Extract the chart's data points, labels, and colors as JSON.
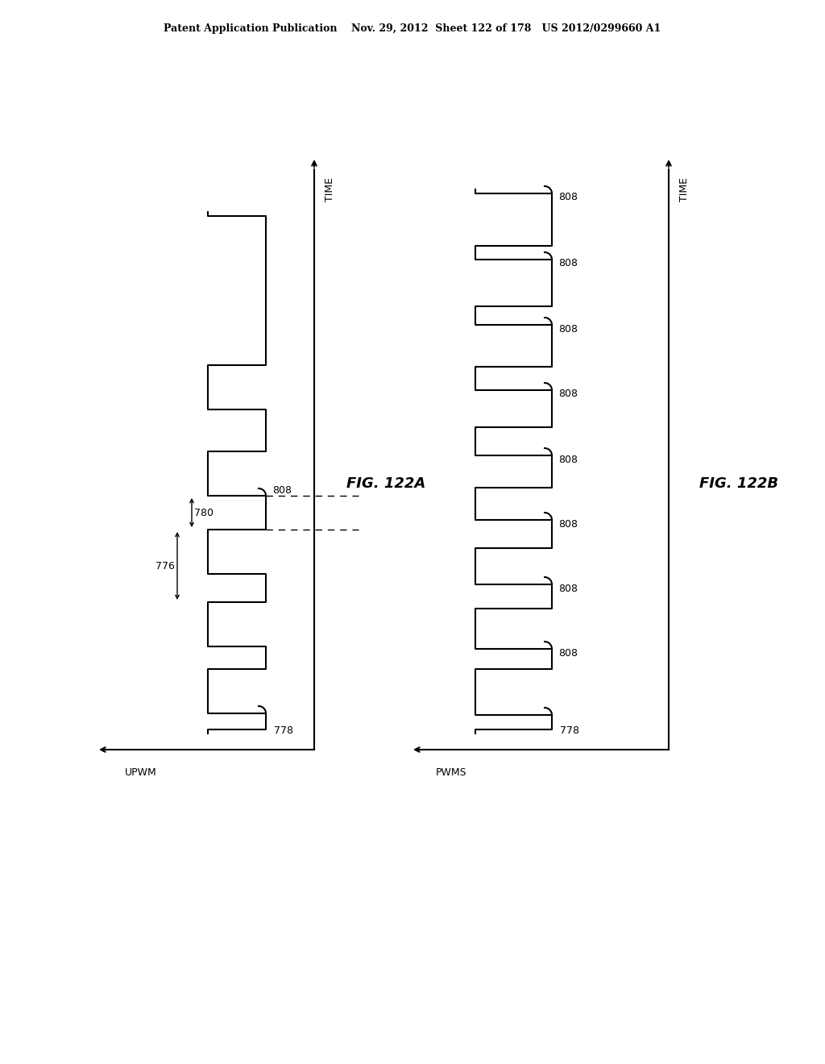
{
  "title_header": "Patent Application Publication    Nov. 29, 2012  Sheet 122 of 178   US 2012/0299660 A1",
  "fig_a_label": "FIG. 122A",
  "fig_b_label": "FIG. 122B",
  "x_label_a": "UPWM",
  "x_label_b": "PWMS",
  "y_label": "TIME",
  "label_776": "776",
  "label_780": "780",
  "label_778_a": "778",
  "label_778_b": "778",
  "label_808": "808",
  "line_color": "#000000",
  "bg_color": "#ffffff"
}
